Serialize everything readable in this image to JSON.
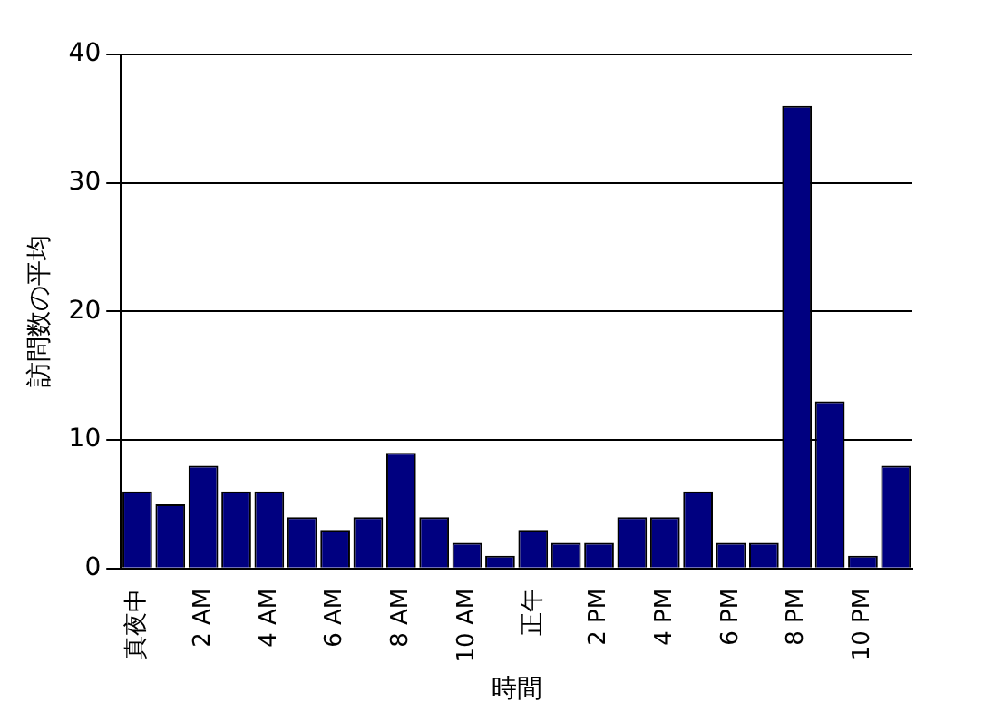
{
  "chart_data": {
    "type": "bar",
    "xlabel": "時間",
    "ylabel": "訪問数の平均",
    "categories": [
      "真夜中",
      null,
      "2 AM",
      null,
      "4 AM",
      null,
      "6 AM",
      null,
      "8 AM",
      null,
      "10 AM",
      null,
      "正午",
      null,
      "2 PM",
      null,
      "4 PM",
      null,
      "6 PM",
      null,
      "8 PM",
      null,
      "10 PM",
      null
    ],
    "values": [
      6,
      5,
      8,
      6,
      6,
      4,
      3,
      4,
      9,
      4,
      2,
      1,
      3,
      2,
      2,
      4,
      4,
      6,
      2,
      2,
      36,
      13,
      1,
      8
    ],
    "color": "#000080",
    "ylim": [
      0,
      40
    ],
    "yticks": [
      0,
      10,
      20,
      30,
      40
    ],
    "grid": "y",
    "legend": false
  }
}
